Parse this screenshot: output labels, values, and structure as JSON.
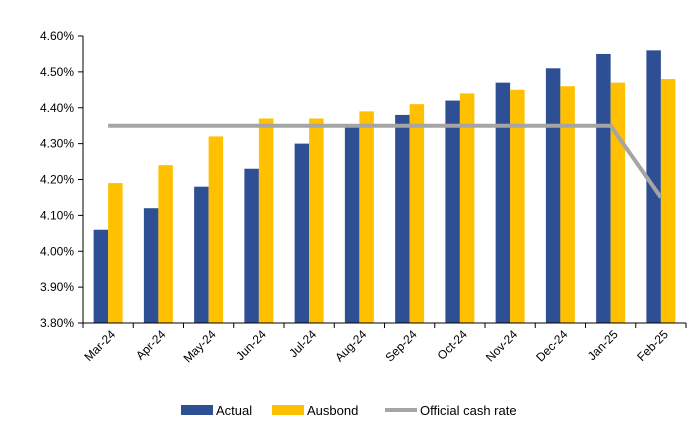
{
  "chart_data": {
    "type": "bar",
    "categories": [
      "Mar-24",
      "Apr-24",
      "May-24",
      "Jun-24",
      "Jul-24",
      "Aug-24",
      "Sep-24",
      "Oct-24",
      "Nov-24",
      "Dec-24",
      "Jan-25",
      "Feb-25"
    ],
    "series": [
      {
        "name": "Actual",
        "type": "bar",
        "color": "#2f4f94",
        "values": [
          4.06,
          4.12,
          4.18,
          4.23,
          4.3,
          4.35,
          4.38,
          4.42,
          4.47,
          4.51,
          4.55,
          4.56
        ]
      },
      {
        "name": "Ausbond",
        "type": "bar",
        "color": "#ffc000",
        "values": [
          4.19,
          4.24,
          4.32,
          4.37,
          4.37,
          4.39,
          4.41,
          4.44,
          4.45,
          4.46,
          4.47,
          4.48
        ]
      },
      {
        "name": "Official cash rate",
        "type": "line",
        "color": "#a5a5a5",
        "values": [
          4.35,
          4.35,
          4.35,
          4.35,
          4.35,
          4.35,
          4.35,
          4.35,
          4.35,
          4.35,
          4.35,
          4.15
        ]
      }
    ],
    "ylim": [
      3.8,
      4.6
    ],
    "yticks": [
      3.8,
      3.9,
      4.0,
      4.1,
      4.2,
      4.3,
      4.4,
      4.5,
      4.6
    ],
    "ytick_labels": [
      "3.80%",
      "3.90%",
      "4.00%",
      "4.10%",
      "4.20%",
      "4.30%",
      "4.40%",
      "4.50%",
      "4.60%"
    ],
    "title": "",
    "xlabel": "",
    "ylabel": "",
    "grid": false,
    "legend_position": "bottom"
  }
}
